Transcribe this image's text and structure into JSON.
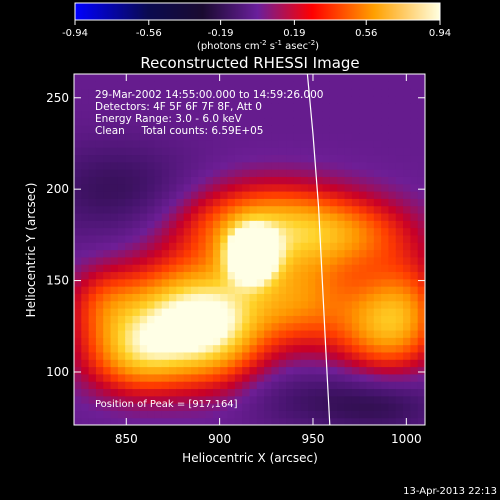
{
  "colorbar": {
    "ticks": [
      "-0.94",
      "-0.56",
      "-0.19",
      "0.19",
      "0.56",
      "0.94"
    ],
    "units_main": "(photons cm",
    "units_exp1": "-2",
    "units_mid": " s",
    "units_exp2": "-1",
    "units_mid2": " asec",
    "units_exp3": "-2",
    "units_end": ")",
    "min": -0.94,
    "max": 0.94
  },
  "chart_data": {
    "type": "heatmap",
    "title": "Reconstructed RHESSI Image",
    "xlabel": "Heliocentric X (arcsec)",
    "ylabel": "Heliocentric Y (arcsec)",
    "xlim": [
      822,
      1010
    ],
    "ylim": [
      71,
      263
    ],
    "x_ticks": [
      850,
      900,
      950,
      1000
    ],
    "y_ticks": [
      100,
      150,
      200,
      250
    ],
    "grid": false,
    "colormap": [
      "#0000ff",
      "#000000",
      "#6a1f9c",
      "#ff0000",
      "#ffb000",
      "#ffffff"
    ],
    "peak": {
      "x": 917,
      "y": 164
    },
    "limb_curve": [
      [
        947,
        263
      ],
      [
        950,
        230
      ],
      [
        953,
        190
      ],
      [
        955,
        150
      ],
      [
        957,
        110
      ],
      [
        959,
        71
      ]
    ],
    "sources": [
      {
        "x": 917,
        "y": 164,
        "sx": 9,
        "sy": 10,
        "amp": 0.92
      },
      {
        "x": 925,
        "y": 180,
        "sx": 32,
        "sy": 16,
        "amp": 0.55
      },
      {
        "x": 875,
        "y": 130,
        "sx": 22,
        "sy": 20,
        "amp": 0.6
      },
      {
        "x": 855,
        "y": 110,
        "sx": 20,
        "sy": 15,
        "amp": 0.45
      },
      {
        "x": 900,
        "y": 125,
        "sx": 18,
        "sy": 22,
        "amp": 0.5
      },
      {
        "x": 940,
        "y": 140,
        "sx": 22,
        "sy": 18,
        "amp": 0.45
      },
      {
        "x": 985,
        "y": 125,
        "sx": 18,
        "sy": 18,
        "amp": 0.4
      },
      {
        "x": 1000,
        "y": 135,
        "sx": 15,
        "sy": 20,
        "amp": 0.3
      },
      {
        "x": 970,
        "y": 175,
        "sx": 25,
        "sy": 14,
        "amp": 0.3
      },
      {
        "x": 838,
        "y": 138,
        "sx": 14,
        "sy": 14,
        "amp": 0.25
      }
    ],
    "background_level": 0.12,
    "dark_regions": [
      {
        "x": 845,
        "y": 200,
        "sx": 30,
        "sy": 18,
        "amp": -0.18
      },
      {
        "x": 960,
        "y": 85,
        "sx": 35,
        "sy": 12,
        "amp": -0.16
      },
      {
        "x": 990,
        "y": 80,
        "sx": 20,
        "sy": 10,
        "amp": -0.1
      }
    ]
  },
  "annotations": {
    "time_range": "29-Mar-2002 14:55:00.000 to 14:59:26.000",
    "detectors": "Detectors: 4F 5F 6F 7F 8F, Att 0",
    "energy": "Energy Range: 3.0 - 6.0 keV",
    "clean": "Clean     Total counts: 6.59E+05",
    "peak_position": "Position of Peak = [917,164]"
  },
  "footer": {
    "timestamp": "13-Apr-2013 22:13"
  }
}
